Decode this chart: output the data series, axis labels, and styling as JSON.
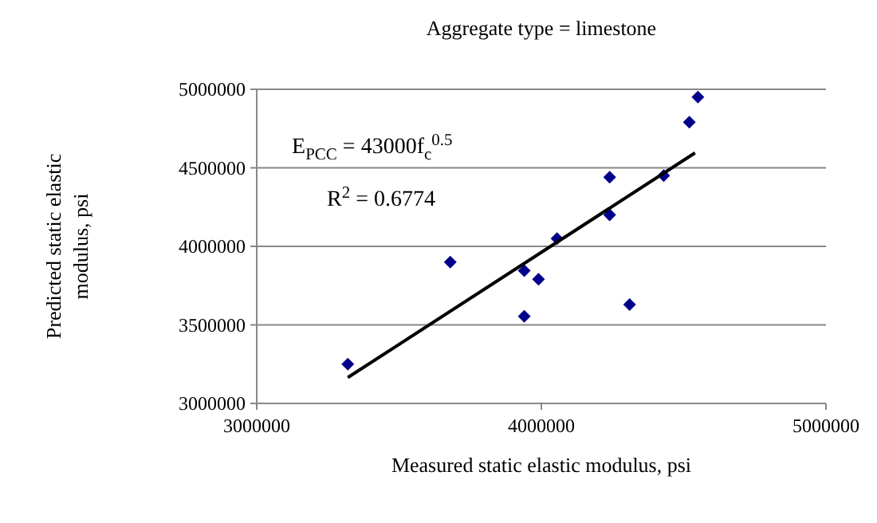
{
  "chart_data": {
    "type": "scatter",
    "title": "Aggregate type = limestone",
    "xlabel": "Measured static elastic modulus, psi",
    "ylabel": "Predicted static elastic modulus, psi",
    "xlim": [
      3000000,
      5000000
    ],
    "xticks": [
      3000000,
      4000000,
      5000000
    ],
    "ylim": [
      3000000,
      5000000
    ],
    "yticks": [
      3000000,
      3500000,
      4000000,
      4500000,
      5000000
    ],
    "grid": "y",
    "marker": "diamond",
    "annotations": [
      "E$_{PCC}$ = 43000f$_{c}$$^{0.5}$",
      "R$^{2}$ = 0.6774"
    ],
    "series": [
      {
        "color": "#00008b",
        "x": [
          3320000,
          3680000,
          3940000,
          3940000,
          3990000,
          4055000,
          4240000,
          4240000,
          4310000,
          4430000,
          4520000,
          4550000
        ],
        "values": [
          3250000,
          3900000,
          3845000,
          3555000,
          3790000,
          4050000,
          4440000,
          4200000,
          3630000,
          4450000,
          4790000,
          4950000
        ]
      },
      {
        "type": "line",
        "color": "#000000",
        "x": [
          3320000,
          4540000
        ],
        "values": [
          3165000,
          4595000
        ],
        "marker": "none"
      }
    ]
  }
}
